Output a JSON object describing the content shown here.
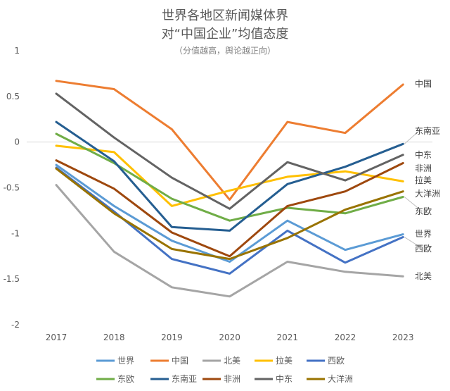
{
  "chart_data": {
    "type": "line",
    "title_line1": "世界各地区新闻媒体界",
    "title_line2": "对“中国企业”均值态度",
    "subtitle": "（分值越高，舆论越正向）",
    "x": [
      "2017",
      "2018",
      "2019",
      "2020",
      "2021",
      "2022",
      "2023"
    ],
    "y_ticks": [
      "1",
      "0.5",
      "0",
      "-0.5",
      "-1",
      "-1.5",
      "-2"
    ],
    "ylim": [
      -2,
      1
    ],
    "grid": false,
    "legend_position": "bottom",
    "series": [
      {
        "name": "世界",
        "color": "#5B9BD5",
        "values": [
          -0.25,
          -0.7,
          -1.08,
          -1.31,
          -0.86,
          -1.18,
          -1.01
        ]
      },
      {
        "name": "中国",
        "color": "#ED7D31",
        "values": [
          0.67,
          0.58,
          0.14,
          -0.63,
          0.22,
          0.1,
          0.63
        ]
      },
      {
        "name": "北美",
        "color": "#A5A5A5",
        "values": [
          -0.47,
          -1.2,
          -1.59,
          -1.69,
          -1.31,
          -1.42,
          -1.47
        ]
      },
      {
        "name": "拉美",
        "color": "#FFC000",
        "values": [
          -0.04,
          -0.11,
          -0.7,
          -0.53,
          -0.38,
          -0.32,
          -0.43
        ]
      },
      {
        "name": "西欧",
        "color": "#4472C4",
        "values": [
          -0.28,
          -0.76,
          -1.28,
          -1.44,
          -0.97,
          -1.32,
          -1.04
        ]
      },
      {
        "name": "东欧",
        "color": "#70AD47",
        "values": [
          0.09,
          -0.23,
          -0.62,
          -0.86,
          -0.72,
          -0.78,
          -0.6
        ]
      },
      {
        "name": "东南亚",
        "color": "#255E91",
        "values": [
          0.22,
          -0.21,
          -0.93,
          -0.97,
          -0.46,
          -0.27,
          -0.02
        ]
      },
      {
        "name": "非洲",
        "color": "#9E480E",
        "values": [
          -0.2,
          -0.51,
          -0.99,
          -1.25,
          -0.7,
          -0.54,
          -0.23
        ]
      },
      {
        "name": "中东",
        "color": "#636363",
        "values": [
          0.53,
          0.05,
          -0.39,
          -0.73,
          -0.22,
          -0.42,
          -0.14
        ]
      },
      {
        "name": "大洋洲",
        "color": "#997300",
        "values": [
          -0.29,
          -0.78,
          -1.17,
          -1.28,
          -1.05,
          -0.74,
          -0.54
        ]
      }
    ]
  }
}
